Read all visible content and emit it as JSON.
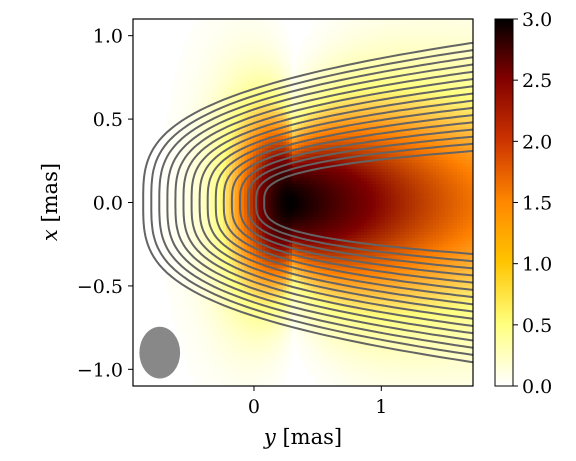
{
  "chart_data": {
    "type": "heatmap",
    "title": "",
    "xlabel_var": "y",
    "xlabel_unit": " [mas]",
    "ylabel_var": "x",
    "ylabel_unit": " [mas]",
    "xlim": [
      -0.95,
      1.72
    ],
    "ylim": [
      -1.1,
      1.1
    ],
    "x_ticks": [
      0,
      1
    ],
    "x_tick_labels": [
      "0",
      "1"
    ],
    "y_ticks": [
      1.0,
      0.5,
      0.0,
      -0.5,
      -1.0
    ],
    "y_tick_labels": [
      "1.0",
      "0.5",
      "0.0",
      "−0.5",
      "−1.0"
    ],
    "colorbar": {
      "range": [
        0.0,
        3.0
      ],
      "ticks": [
        0.0,
        0.5,
        1.0,
        1.5,
        2.0,
        2.5,
        3.0
      ],
      "tick_labels": [
        "0.0",
        "0.5",
        "1.0",
        "1.5",
        "2.0",
        "2.5",
        "3.0"
      ],
      "colormap": "afmhot_r"
    },
    "intensity_peak": {
      "y": 0.3,
      "x": 0.0,
      "value": 3.0
    },
    "contour_lines": {
      "count": 16,
      "color": "#646464"
    },
    "beam": {
      "center_y": -0.74,
      "center_x": -0.9,
      "width_y": 0.32,
      "height_x": 0.31,
      "color": "#888888"
    },
    "grid": false,
    "legend": "none"
  }
}
